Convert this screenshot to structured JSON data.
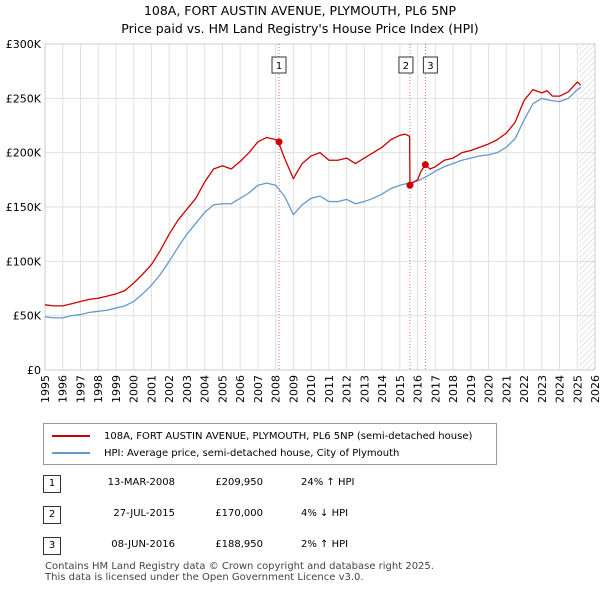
{
  "header": {
    "title": "108A, FORT AUSTIN AVENUE, PLYMOUTH, PL6 5NP",
    "subtitle": "Price paid vs. HM Land Registry's House Price Index (HPI)"
  },
  "colors": {
    "price": "#cc0000",
    "hpi": "#6699cc",
    "grid": "#e0e0e0",
    "marker_line": "#cc0000"
  },
  "chart_data": {
    "type": "line",
    "title": "108A, FORT AUSTIN AVENUE, PLYMOUTH, PL6 5NP",
    "subtitle": "Price paid vs. HM Land Registry's House Price Index (HPI)",
    "xlim": [
      1995,
      2026
    ],
    "ylim": [
      0,
      300000
    ],
    "x_ticks": [
      1995,
      1996,
      1997,
      1998,
      1999,
      2000,
      2001,
      2002,
      2003,
      2004,
      2005,
      2006,
      2007,
      2008,
      2009,
      2010,
      2011,
      2012,
      2013,
      2014,
      2015,
      2016,
      2017,
      2018,
      2019,
      2020,
      2021,
      2022,
      2023,
      2024,
      2025,
      2026
    ],
    "x_tick_labels": [
      "1995",
      "1996",
      "1997",
      "1998",
      "1999",
      "2000",
      "2001",
      "2002",
      "2003",
      "2004",
      "2005",
      "2006",
      "2007",
      "2008",
      "2009",
      "2010",
      "2011",
      "2012",
      "2013",
      "2014",
      "2015",
      "2016",
      "2017",
      "2018",
      "2019",
      "2020",
      "2021",
      "2022",
      "2023",
      "2024",
      "2025",
      "2026"
    ],
    "y_ticks": [
      0,
      50000,
      100000,
      150000,
      200000,
      250000,
      300000
    ],
    "y_tick_labels": [
      "£0",
      "£50K",
      "£100K",
      "£150K",
      "£200K",
      "£250K",
      "£300K"
    ],
    "grid": true,
    "hatched_from": 2025.1,
    "series": [
      {
        "name": "108A, FORT AUSTIN AVENUE, PLYMOUTH, PL6 5NP (semi-detached house)",
        "color": "#cc0000",
        "x": [
          1995.0,
          1995.5,
          1996.0,
          1996.5,
          1997.0,
          1997.5,
          1998.0,
          1998.5,
          1999.0,
          1999.5,
          2000.0,
          2000.5,
          2001.0,
          2001.5,
          2002.0,
          2002.5,
          2003.0,
          2003.5,
          2004.0,
          2004.5,
          2005.0,
          2005.5,
          2006.0,
          2006.5,
          2007.0,
          2007.5,
          2008.0,
          2008.2,
          2008.5,
          2009.0,
          2009.2,
          2009.5,
          2010.0,
          2010.5,
          2011.0,
          2011.5,
          2012.0,
          2012.5,
          2013.0,
          2013.5,
          2014.0,
          2014.5,
          2015.0,
          2015.3,
          2015.55,
          2015.57,
          2015.7,
          2016.0,
          2016.2,
          2016.44,
          2016.7,
          2017.0,
          2017.5,
          2018.0,
          2018.5,
          2019.0,
          2019.5,
          2020.0,
          2020.5,
          2021.0,
          2021.5,
          2022.0,
          2022.5,
          2023.0,
          2023.3,
          2023.6,
          2024.0,
          2024.5,
          2025.0,
          2025.2
        ],
        "y": [
          60000,
          59000,
          59000,
          61000,
          63000,
          65000,
          66000,
          68000,
          70000,
          73000,
          80000,
          88000,
          97000,
          110000,
          125000,
          138000,
          148000,
          158000,
          173000,
          185000,
          188000,
          185000,
          192000,
          200000,
          210000,
          214000,
          212000,
          208000,
          195000,
          176000,
          182000,
          190000,
          197000,
          200000,
          193000,
          193000,
          195000,
          190000,
          195000,
          200000,
          205000,
          212000,
          216000,
          217000,
          215000,
          170000,
          172000,
          175000,
          183000,
          188950,
          185000,
          187000,
          193000,
          195000,
          200000,
          202000,
          205000,
          208000,
          212000,
          218000,
          228000,
          248000,
          258000,
          255000,
          257000,
          252000,
          252000,
          256000,
          265000,
          262000
        ]
      },
      {
        "name": "HPI: Average price, semi-detached house, City of Plymouth",
        "color": "#6699cc",
        "x": [
          1995.0,
          1995.5,
          1996.0,
          1996.5,
          1997.0,
          1997.5,
          1998.0,
          1998.5,
          1999.0,
          1999.5,
          2000.0,
          2000.5,
          2001.0,
          2001.5,
          2002.0,
          2002.5,
          2003.0,
          2003.5,
          2004.0,
          2004.5,
          2005.0,
          2005.5,
          2006.0,
          2006.5,
          2007.0,
          2007.5,
          2008.0,
          2008.5,
          2009.0,
          2009.5,
          2010.0,
          2010.5,
          2011.0,
          2011.5,
          2012.0,
          2012.5,
          2013.0,
          2013.5,
          2014.0,
          2014.5,
          2015.0,
          2015.5,
          2016.0,
          2016.5,
          2017.0,
          2017.5,
          2018.0,
          2018.5,
          2019.0,
          2019.5,
          2020.0,
          2020.5,
          2021.0,
          2021.5,
          2022.0,
          2022.5,
          2023.0,
          2023.5,
          2024.0,
          2024.5,
          2025.0,
          2025.2
        ],
        "y": [
          49000,
          48000,
          48000,
          50000,
          51000,
          53000,
          54000,
          55000,
          57000,
          59000,
          63000,
          70000,
          78000,
          88000,
          100000,
          113000,
          125000,
          135000,
          145000,
          152000,
          153000,
          153000,
          158000,
          163000,
          170000,
          172000,
          170000,
          160000,
          143000,
          152000,
          158000,
          160000,
          155000,
          155000,
          157000,
          153000,
          155000,
          158000,
          162000,
          167000,
          170000,
          172000,
          174000,
          178000,
          183000,
          187000,
          190000,
          193000,
          195000,
          197000,
          198000,
          200000,
          205000,
          213000,
          230000,
          245000,
          250000,
          248000,
          247000,
          250000,
          258000,
          260000
        ]
      }
    ],
    "annotations": [
      {
        "label": "1",
        "x": 2008.19,
        "y": 209950
      },
      {
        "label": "2",
        "x": 2015.57,
        "y": 170000
      },
      {
        "label": "3",
        "x": 2016.44,
        "y": 188950
      }
    ]
  },
  "legend": {
    "price_label": "108A, FORT AUSTIN AVENUE, PLYMOUTH, PL6 5NP (semi-detached house)",
    "hpi_label": "HPI: Average price, semi-detached house, City of Plymouth"
  },
  "transactions": [
    {
      "num": "1",
      "date": "13-MAR-2008",
      "price": "£209,950",
      "hpi": "24% ↑ HPI"
    },
    {
      "num": "2",
      "date": "27-JUL-2015",
      "price": "£170,000",
      "hpi": "4% ↓ HPI"
    },
    {
      "num": "3",
      "date": "08-JUN-2016",
      "price": "£188,950",
      "hpi": "2% ↑ HPI"
    }
  ],
  "footer": {
    "line1": "Contains HM Land Registry data © Crown copyright and database right 2025.",
    "line2": "This data is licensed under the Open Government Licence v3.0."
  }
}
